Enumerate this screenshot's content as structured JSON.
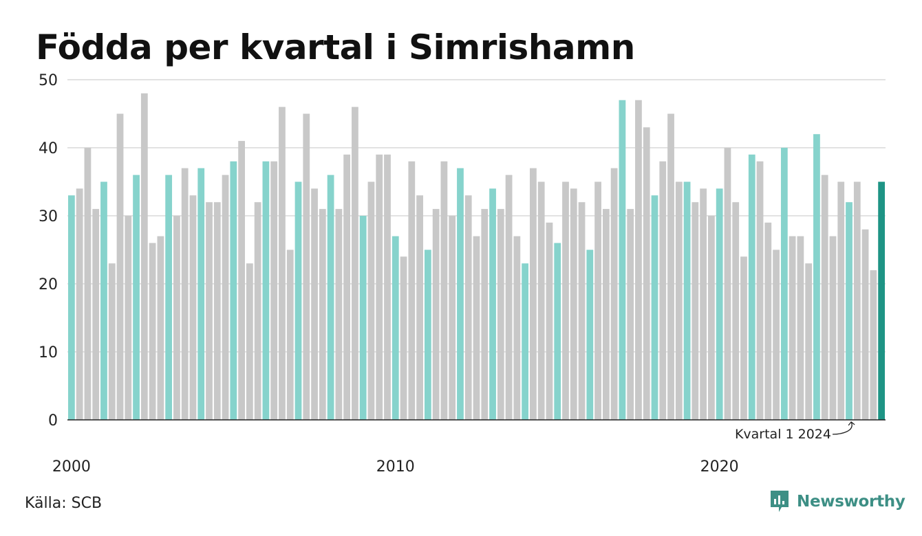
{
  "title": "Födda per kvartal i Simrishamn",
  "source": "Källa: SCB",
  "brand": {
    "name": "Newsworthy",
    "icon": "newsworthy-logo-icon"
  },
  "colors": {
    "q1": "#86d3cc",
    "other": "#c8c8c8",
    "latest": "#1e9485",
    "grid": "#e2e2e2",
    "axis": "#222222",
    "brand": "#3d8f85"
  },
  "chart_data": {
    "type": "bar",
    "start_year": 2000,
    "start_quarter": 1,
    "values": [
      33,
      34,
      40,
      31,
      35,
      23,
      45,
      30,
      36,
      48,
      26,
      27,
      36,
      30,
      37,
      33,
      37,
      32,
      32,
      36,
      38,
      41,
      23,
      32,
      38,
      38,
      46,
      25,
      35,
      45,
      34,
      31,
      36,
      31,
      39,
      46,
      30,
      35,
      39,
      39,
      27,
      24,
      38,
      33,
      25,
      31,
      38,
      30,
      37,
      33,
      27,
      31,
      34,
      31,
      36,
      27,
      23,
      37,
      35,
      29,
      26,
      35,
      34,
      32,
      25,
      35,
      31,
      37,
      47,
      31,
      47,
      43,
      33,
      38,
      45,
      35,
      35,
      32,
      34,
      30,
      34,
      40,
      32,
      24,
      39,
      38,
      29,
      25,
      40,
      27,
      27,
      23,
      42,
      36,
      27,
      35,
      32,
      35,
      28,
      22,
      35
    ],
    "ylim": [
      0,
      50
    ],
    "yticks": [
      0,
      10,
      20,
      30,
      40,
      50
    ],
    "xticks": [
      "2000",
      "2010",
      "2020"
    ],
    "highlight": "Q1 bars in teal, other quarters in grey, latest bar in dark teal",
    "annotation": "Kvartal 1 2024",
    "grid": true
  }
}
